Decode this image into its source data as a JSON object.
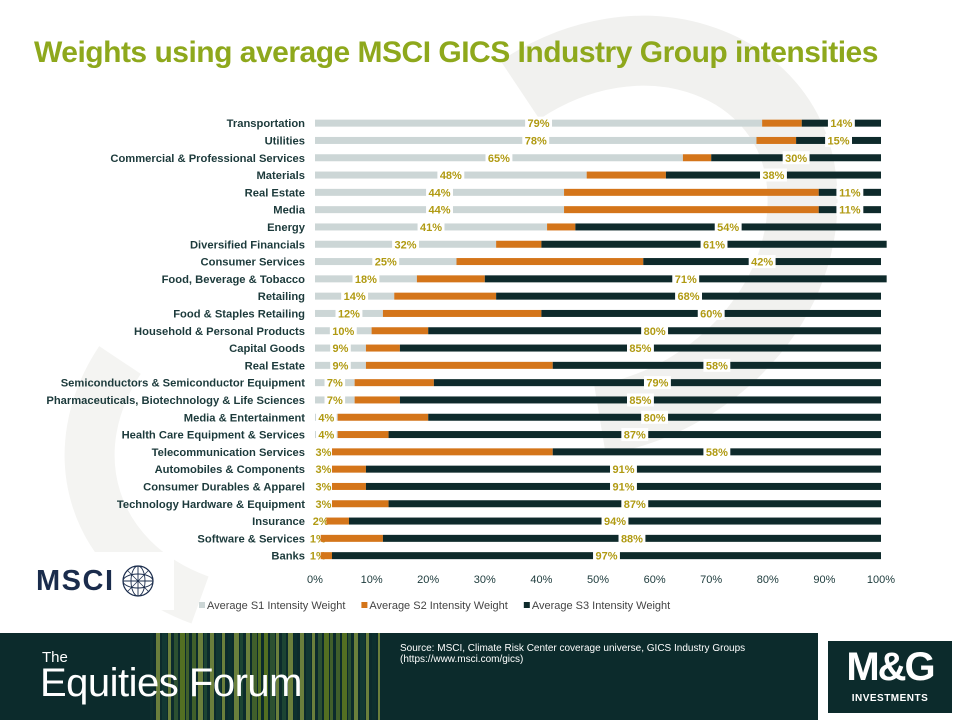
{
  "title": "Weights using average MSCI GICS Industry Group intensities",
  "chart_data": {
    "type": "bar",
    "orientation": "horizontal",
    "stacked": true,
    "percent": true,
    "categories": [
      "Transportation",
      "Utilities",
      "Commercial & Professional Services",
      "Materials",
      "Real Estate",
      "Media",
      "Energy",
      "Diversified Financials",
      "Consumer Services",
      "Food, Beverage & Tobacco",
      "Retailing",
      "Food & Staples Retailing",
      "Household & Personal Products",
      "Capital Goods",
      "Real Estate",
      "Semiconductors & Semiconductor Equipment",
      "Pharmaceuticals, Biotechnology & Life Sciences",
      "Media & Entertainment",
      "Health Care Equipment & Services",
      "Telecommunication Services",
      "Automobiles & Components",
      "Consumer Durables & Apparel",
      "Technology Hardware & Equipment",
      "Insurance",
      "Software & Services",
      "Banks"
    ],
    "series": [
      {
        "name": "Average S1 Intensity Weight",
        "color": "#ccd6d6",
        "values": [
          79,
          78,
          65,
          48,
          44,
          44,
          41,
          32,
          25,
          18,
          14,
          12,
          10,
          9,
          9,
          7,
          7,
          4,
          4,
          3,
          3,
          3,
          3,
          2,
          1,
          1
        ],
        "labels": [
          "79%",
          "78%",
          "65%",
          "48%",
          "44%",
          "44%",
          "41%",
          "32%",
          "25%",
          "18%",
          "14%",
          "12%",
          "10%",
          "9%",
          "9%",
          "7%",
          "7%",
          "4%",
          "4%",
          "3%",
          "3%",
          "3%",
          "3%",
          "2%",
          "1%",
          "1%"
        ]
      },
      {
        "name": "Average S2 Intensity Weight",
        "color": "#d4751a",
        "values": [
          7,
          7,
          5,
          14,
          45,
          45,
          5,
          8,
          33,
          12,
          18,
          28,
          10,
          6,
          33,
          14,
          8,
          16,
          9,
          39,
          6,
          6,
          10,
          4,
          11,
          2
        ],
        "labels": []
      },
      {
        "name": "Average S3 Intensity Weight",
        "color": "#0e2a2b",
        "values": [
          14,
          15,
          30,
          38,
          11,
          11,
          54,
          61,
          42,
          71,
          68,
          60,
          80,
          85,
          58,
          79,
          85,
          80,
          87,
          58,
          91,
          91,
          87,
          94,
          88,
          97
        ],
        "labels": [
          "14%",
          "15%",
          "30%",
          "38%",
          "11%",
          "11%",
          "54%",
          "61%",
          "42%",
          "71%",
          "68%",
          "60%",
          "80%",
          "85%",
          "58%",
          "79%",
          "85%",
          "80%",
          "87%",
          "58%",
          "91%",
          "91%",
          "87%",
          "94%",
          "88%",
          "97%"
        ]
      }
    ],
    "xlim": [
      0,
      100
    ],
    "xticks": [
      "0%",
      "10%",
      "20%",
      "30%",
      "40%",
      "50%",
      "60%",
      "70%",
      "80%",
      "90%",
      "100%"
    ],
    "label_color": "#b09a12",
    "grid": false,
    "legend_position": "bottom"
  },
  "logos": {
    "msci": "MSCI",
    "footer_the": "The",
    "footer_name": "Equities Forum",
    "mg_brand": "M&G",
    "mg_sub": "INVESTMENTS"
  },
  "source": "Source: MSCI,  Climate Risk Center coverage universe, GICS Industry Groups (https://www.msci.com/gics)",
  "colors": {
    "title": "#8ea81c",
    "footer_bg": "#0c2b2c"
  }
}
